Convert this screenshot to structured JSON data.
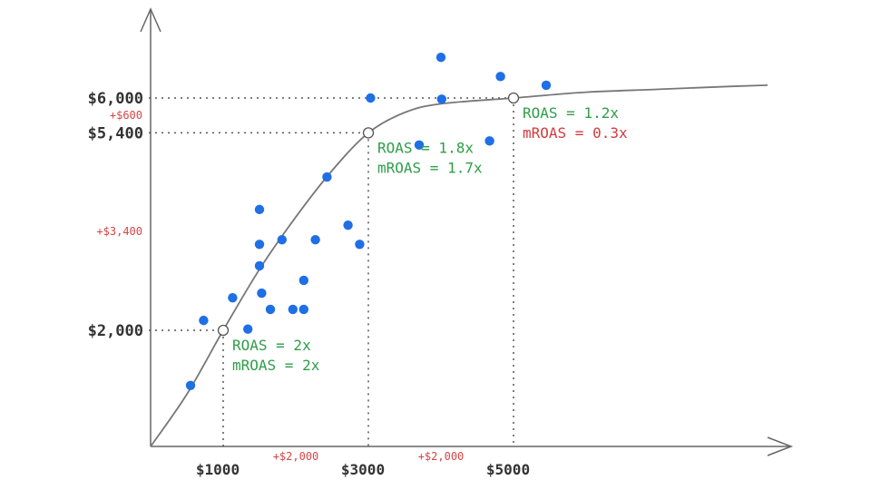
{
  "chart_data": {
    "type": "scatter",
    "title": "",
    "xlabel": "",
    "ylabel": "",
    "xlim": [
      0,
      8500
    ],
    "ylim": [
      0,
      7000
    ],
    "grid": false,
    "x_ticks": [
      {
        "value": 1000,
        "label": "$1000"
      },
      {
        "value": 3000,
        "label": "$3000"
      },
      {
        "value": 5000,
        "label": "$5000"
      }
    ],
    "y_ticks": [
      {
        "value": 2000,
        "label": "$2,000"
      },
      {
        "value": 5400,
        "label": "$5,400"
      },
      {
        "value": 6000,
        "label": "$6,000"
      }
    ],
    "x_deltas": [
      {
        "from": 1000,
        "to": 3000,
        "label": "+$2,000"
      },
      {
        "from": 3000,
        "to": 5000,
        "label": "+$2,000"
      }
    ],
    "y_deltas": [
      {
        "from": 2000,
        "to": 5400,
        "label": "+$3,400"
      },
      {
        "from": 5400,
        "to": 6000,
        "label": "+$600"
      }
    ],
    "curve": {
      "type": "saturation",
      "points": [
        {
          "x": 0,
          "y": 0
        },
        {
          "x": 500,
          "y": 900
        },
        {
          "x": 1000,
          "y": 2000
        },
        {
          "x": 1500,
          "y": 3050
        },
        {
          "x": 2000,
          "y": 3950
        },
        {
          "x": 2500,
          "y": 4750
        },
        {
          "x": 3000,
          "y": 5400
        },
        {
          "x": 3500,
          "y": 5750
        },
        {
          "x": 4000,
          "y": 5900
        },
        {
          "x": 5000,
          "y": 6000
        },
        {
          "x": 6000,
          "y": 6100
        },
        {
          "x": 7000,
          "y": 6150
        },
        {
          "x": 8000,
          "y": 6200
        },
        {
          "x": 8500,
          "y": 6220
        }
      ]
    },
    "markers": [
      {
        "x": 1000,
        "y": 2000,
        "annotations": [
          {
            "text": "ROAS = 2x",
            "color": "#2e9e48"
          },
          {
            "text": "mROAS = 2x",
            "color": "#2e9e48"
          }
        ]
      },
      {
        "x": 3000,
        "y": 5400,
        "annotations": [
          {
            "text": "ROAS = 1.8x",
            "color": "#2e9e48"
          },
          {
            "text": "mROAS = 1.7x",
            "color": "#2e9e48"
          }
        ]
      },
      {
        "x": 5000,
        "y": 6000,
        "annotations": [
          {
            "text": "ROAS = 1.2x",
            "color": "#2e9e48"
          },
          {
            "text": "mROAS = 0.3x",
            "color": "#d23c3c"
          }
        ]
      }
    ],
    "series": [
      {
        "color": "#1f6fe5",
        "points": [
          {
            "x": 550,
            "y": 1050
          },
          {
            "x": 730,
            "y": 2170
          },
          {
            "x": 1130,
            "y": 2560
          },
          {
            "x": 1340,
            "y": 2020
          },
          {
            "x": 1530,
            "y": 2640
          },
          {
            "x": 1500,
            "y": 4080
          },
          {
            "x": 1500,
            "y": 3480
          },
          {
            "x": 1500,
            "y": 3110
          },
          {
            "x": 1650,
            "y": 2360
          },
          {
            "x": 1810,
            "y": 3560
          },
          {
            "x": 1960,
            "y": 2360
          },
          {
            "x": 2110,
            "y": 2860
          },
          {
            "x": 2110,
            "y": 2360
          },
          {
            "x": 2270,
            "y": 3560
          },
          {
            "x": 2430,
            "y": 4640
          },
          {
            "x": 2720,
            "y": 3810
          },
          {
            "x": 2880,
            "y": 3480
          },
          {
            "x": 3030,
            "y": 6000
          },
          {
            "x": 3700,
            "y": 5190
          },
          {
            "x": 4010,
            "y": 5980
          },
          {
            "x": 4000,
            "y": 6700
          },
          {
            "x": 4670,
            "y": 5260
          },
          {
            "x": 4820,
            "y": 6370
          },
          {
            "x": 5450,
            "y": 6220
          }
        ]
      }
    ]
  }
}
